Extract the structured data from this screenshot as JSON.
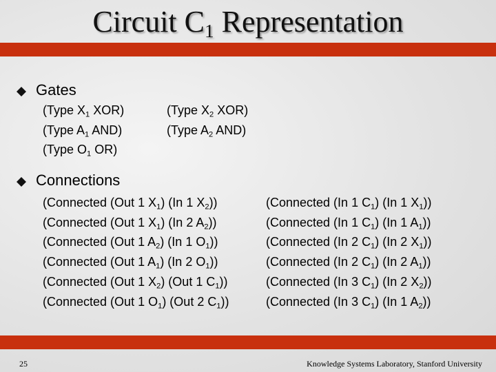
{
  "title": [
    "Circuit C",
    "1",
    " Representation"
  ],
  "bullets": [
    {
      "label": "Gates",
      "columns": [
        [
          [
            "(Type X",
            "1",
            " XOR)"
          ],
          [
            "(Type A",
            "1",
            " AND)"
          ],
          [
            "(Type O",
            "1",
            " OR)"
          ]
        ],
        [
          [
            "(Type X",
            "2",
            " XOR)"
          ],
          [
            "(Type A",
            "2",
            " AND)"
          ]
        ]
      ]
    },
    {
      "label": "Connections",
      "columns": [
        [
          [
            "(Connected (Out 1 X",
            "1",
            ") (In 1 X",
            "2",
            "))"
          ],
          [
            "(Connected (Out 1 X",
            "1",
            ") (In 2 A",
            "2",
            "))"
          ],
          [
            "(Connected (Out 1 A",
            "2",
            ") (In 1 O",
            "1",
            "))"
          ],
          [
            "(Connected (Out 1 A",
            "1",
            ") (In 2 O",
            "1",
            "))"
          ],
          [
            "(Connected (Out 1 X",
            "2",
            ") (Out 1 C",
            "1",
            "))"
          ],
          [
            "(Connected (Out 1 O",
            "1",
            ") (Out 2 C",
            "1",
            "))"
          ]
        ],
        [
          [
            "(Connected (In 1 C",
            "1",
            ") (In 1 X",
            "1",
            "))"
          ],
          [
            "(Connected (In 1 C",
            "1",
            ") (In 1 A",
            "1",
            "))"
          ],
          [
            "(Connected (In 2 C",
            "1",
            ") (In 2 X",
            "1",
            "))"
          ],
          [
            "(Connected (In 2 C",
            "1",
            ") (In 2 A",
            "1",
            "))"
          ],
          [
            "(Connected (In 3 C",
            "1",
            ") (In 2 X",
            "2",
            "))"
          ],
          [
            "(Connected (In 3 C",
            "1",
            ") (In 1 A",
            "2",
            "))"
          ]
        ]
      ]
    }
  ],
  "footer": {
    "page_number": "25",
    "credit": "Knowledge Systems Laboratory, Stanford University"
  }
}
